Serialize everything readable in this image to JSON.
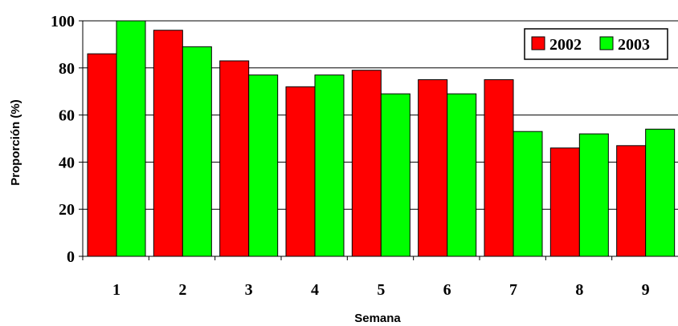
{
  "chart_data": {
    "type": "bar",
    "categories": [
      "1",
      "2",
      "3",
      "4",
      "5",
      "6",
      "7",
      "8",
      "9"
    ],
    "series": [
      {
        "name": "2002",
        "color": "#ff0000",
        "values": [
          86,
          96,
          83,
          72,
          79,
          75,
          75,
          46,
          47
        ]
      },
      {
        "name": "2003",
        "color": "#00ff00",
        "values": [
          100,
          89,
          77,
          77,
          69,
          69,
          53,
          52,
          54
        ]
      }
    ],
    "title": "",
    "xlabel": "Semana",
    "ylabel": "Proporción (%)",
    "ylim": [
      0,
      100
    ],
    "yticks": [
      0,
      20,
      40,
      60,
      80,
      100
    ],
    "grid": true,
    "legend_position": "top-right"
  }
}
